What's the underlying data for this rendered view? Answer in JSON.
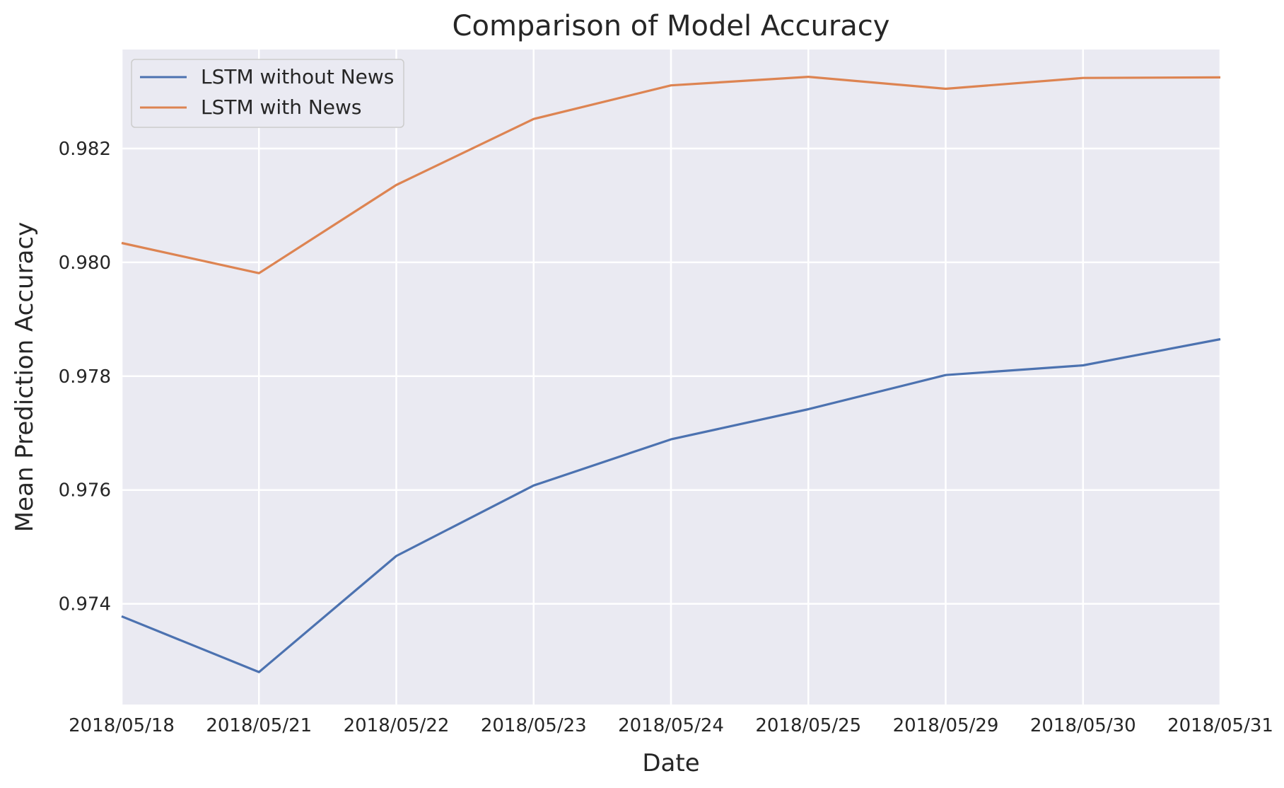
{
  "chart_data": {
    "type": "line",
    "title": "Comparison of Model Accuracy",
    "xlabel": "Date",
    "ylabel": "Mean Prediction Accuracy",
    "categories": [
      "2018/05/18",
      "2018/05/21",
      "2018/05/22",
      "2018/05/23",
      "2018/05/24",
      "2018/05/25",
      "2018/05/29",
      "2018/05/30",
      "2018/05/31"
    ],
    "series": [
      {
        "name": "LSTM without News",
        "color": "#4c72b0",
        "values": [
          0.97378,
          0.9728,
          0.97484,
          0.97608,
          0.97689,
          0.97742,
          0.97802,
          0.97819,
          0.97865
        ]
      },
      {
        "name": "LSTM with News",
        "color": "#dd8452",
        "values": [
          0.98034,
          0.97981,
          0.98136,
          0.98252,
          0.98311,
          0.98326,
          0.98305,
          0.98324,
          0.98325
        ]
      }
    ],
    "ylim": [
      0.97223,
      0.98374
    ],
    "yticks": [
      0.974,
      0.976,
      0.978,
      0.98,
      0.982
    ],
    "ytick_labels": [
      "0.974",
      "0.976",
      "0.978",
      "0.980",
      "0.982"
    ],
    "grid": true,
    "legend_position": "top-left",
    "background_color": "#eaeaf2",
    "grid_color": "#ffffff"
  }
}
